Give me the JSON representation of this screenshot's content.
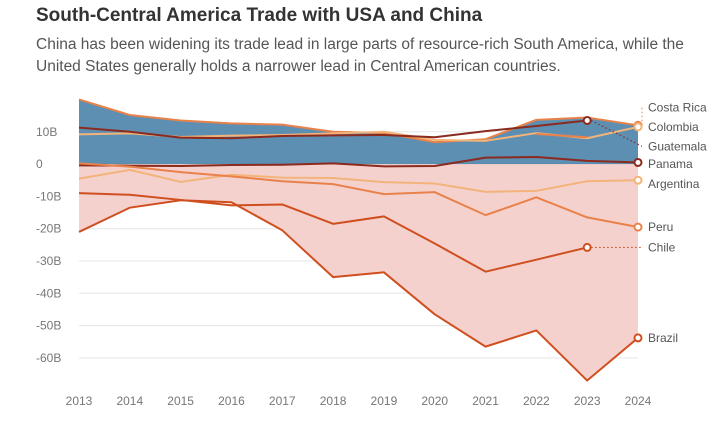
{
  "header": {
    "title": "South-Central America Trade with USA and China",
    "subtitle": "China has been widening its trade lead in large parts of resource-rich South America, while the United States generally holds a narrower lead in Central American countries."
  },
  "colors": {
    "usa_area": "#4f86ad",
    "china_area": "#f4cfcb",
    "dark_red": "#8b2a1f",
    "dark_orange": "#cf4f1f",
    "mid_orange": "#e8824a",
    "light_orange": "#f2b47a",
    "axis_text": "#777777"
  },
  "chart_data": {
    "type": "line",
    "x": [
      2013,
      2014,
      2015,
      2016,
      2017,
      2018,
      2019,
      2020,
      2021,
      2022,
      2023,
      2024
    ],
    "xtick_labels": [
      "2013",
      "2014",
      "2015",
      "2016",
      "2017",
      "2018",
      "2019",
      "2020",
      "2021",
      "2022",
      "2023",
      "2024"
    ],
    "ytick_values": [
      10,
      0,
      -10,
      -20,
      -30,
      -40,
      -50,
      -60
    ],
    "ytick_labels": [
      "10B",
      "0",
      "-10B",
      "-20B",
      "-30B",
      "-40B",
      "-50B",
      "-60B"
    ],
    "ylim": [
      -69,
      22
    ],
    "grid": true,
    "areas": [
      {
        "name": "usa",
        "upper": [
          20,
          15.2,
          13.5,
          12.6,
          12.2,
          10,
          9.6,
          6.8,
          7.7,
          13.7,
          14.4,
          12
        ]
      },
      {
        "name": "china",
        "lower": [
          -21,
          -13.5,
          -11.2,
          -11.8,
          -20.5,
          -35,
          -33.5,
          -46.5,
          -56.5,
          -51.5,
          -67,
          -53.8
        ]
      }
    ],
    "series": [
      {
        "name": "Costa Rica",
        "color": "#e8824a",
        "values": [
          20,
          15.2,
          13.5,
          12.6,
          12.2,
          10,
          9.6,
          6.8,
          7.7,
          13.7,
          14.4,
          12
        ],
        "label_y": 17.5,
        "dotted": false
      },
      {
        "name": "Colombia",
        "color": "#f2b47a",
        "values": [
          9.2,
          9.5,
          8.4,
          8.8,
          9,
          9.5,
          10,
          7.5,
          7.2,
          9.6,
          8,
          11.5
        ],
        "label_y": 11.5,
        "dotted": false
      },
      {
        "name": "Guatemala",
        "color": "#8b2a1f",
        "values": [
          11.3,
          10,
          8.2,
          8,
          8.7,
          8.9,
          9,
          8.3,
          10.2,
          11.8,
          13.5,
          null
        ],
        "label_y": 5.5,
        "dotted": true
      },
      {
        "name": "Guatemala-2",
        "color": "#e8824a",
        "values": [
          null,
          null,
          null,
          null,
          null,
          null,
          null,
          null,
          null,
          9.3,
          8.3,
          null
        ],
        "label_y": null,
        "dotted": false
      },
      {
        "name": "Panama",
        "color": "#8b2a1f",
        "values": [
          -0.4,
          -0.5,
          -0.6,
          -0.3,
          -0.2,
          0.2,
          -0.7,
          -0.6,
          2,
          2.2,
          1,
          0.5
        ],
        "label_y": 0,
        "dotted": false
      },
      {
        "name": "Argentina",
        "color": "#f2b47a",
        "values": [
          -4.5,
          -1.8,
          -5.5,
          -3.3,
          -4.2,
          -4.3,
          -5.6,
          -6,
          -8.6,
          -8.3,
          -5.3,
          -5
        ],
        "label_y": -6.2,
        "dotted": false
      },
      {
        "name": "Peru",
        "color": "#e8824a",
        "values": [
          0.2,
          -0.8,
          -2.5,
          -3.8,
          -5.3,
          -6.2,
          -9.3,
          -8.7,
          -15.8,
          -10.3,
          -16.5,
          -19.5
        ],
        "label_y": -19.5,
        "dotted": false
      },
      {
        "name": "Chile",
        "color": "#cf4f1f",
        "values": [
          -9,
          -9.5,
          -11.1,
          -12.8,
          -12.5,
          -18.5,
          -16.2,
          -24.6,
          -33.3,
          -29.6,
          -25.8,
          null
        ],
        "label_y": -25.8,
        "dotted": true
      },
      {
        "name": "Brazil",
        "color": "#cf4f1f",
        "values": [
          -21,
          -13.5,
          -11.2,
          -11.8,
          -20.5,
          -35,
          -33.5,
          -46.5,
          -56.5,
          -51.5,
          -67,
          -53.8
        ],
        "label_y": -53.8,
        "dotted": false
      }
    ],
    "legend": [
      {
        "name": "Costa Rica",
        "label": "Costa Rica",
        "label_y": 17.5
      },
      {
        "name": "Colombia",
        "label": "Colombia",
        "label_y": 11.5
      },
      {
        "name": "Guatemala",
        "label": "Guatemala",
        "label_y": 5.5
      },
      {
        "name": "Panama",
        "label": "Panama",
        "label_y": 0
      },
      {
        "name": "Argentina",
        "label": "Argentina",
        "label_y": -6.2
      },
      {
        "name": "Peru",
        "label": "Peru",
        "label_y": -19.5
      },
      {
        "name": "Chile",
        "label": "Chile",
        "label_y": -25.8
      },
      {
        "name": "Brazil",
        "label": "Brazil",
        "label_y": -53.8
      }
    ]
  }
}
